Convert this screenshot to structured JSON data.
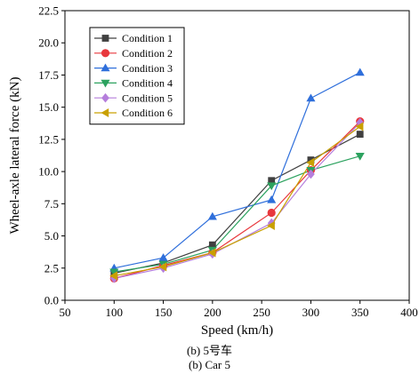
{
  "chart_data": {
    "type": "line",
    "title": "",
    "xlabel": "Speed (km/h)",
    "ylabel": "Wheel-axle lateral force (kN)",
    "xlim": [
      50,
      400
    ],
    "ylim": [
      0,
      22.5
    ],
    "xticks": [
      50,
      100,
      150,
      200,
      250,
      300,
      350,
      400
    ],
    "yticks": [
      0.0,
      2.5,
      5.0,
      7.5,
      10.0,
      12.5,
      15.0,
      17.5,
      20.0,
      22.5
    ],
    "xtick_labels": [
      "50",
      "100",
      "150",
      "200",
      "250",
      "300",
      "350",
      "400"
    ],
    "ytick_labels": [
      "0.0",
      "2.5",
      "5.0",
      "7.5",
      "10.0",
      "12.5",
      "15.0",
      "17.5",
      "20.0",
      "22.5"
    ],
    "grid": false,
    "legend_position": "top-left",
    "series": [
      {
        "name": "Condition 1",
        "color": "#404040",
        "marker": "square",
        "x": [
          100,
          150,
          200,
          260,
          300,
          350
        ],
        "y": [
          2.1,
          2.9,
          4.3,
          9.3,
          10.9,
          12.9
        ]
      },
      {
        "name": "Condition 2",
        "color": "#e8383d",
        "marker": "circle",
        "x": [
          100,
          150,
          200,
          260,
          300,
          350
        ],
        "y": [
          1.7,
          2.7,
          3.7,
          6.8,
          10.1,
          13.9
        ]
      },
      {
        "name": "Condition 3",
        "color": "#2f6fdb",
        "marker": "triangle-up",
        "x": [
          100,
          150,
          200,
          260,
          300,
          350
        ],
        "y": [
          2.5,
          3.3,
          6.5,
          7.8,
          15.7,
          17.7
        ]
      },
      {
        "name": "Condition 4",
        "color": "#2ca25f",
        "marker": "triangle-down",
        "x": [
          100,
          150,
          200,
          260,
          300,
          350
        ],
        "y": [
          2.2,
          2.8,
          3.9,
          8.9,
          10.1,
          11.2
        ]
      },
      {
        "name": "Condition 5",
        "color": "#b57edc",
        "marker": "diamond",
        "x": [
          100,
          150,
          200,
          260,
          300,
          350
        ],
        "y": [
          1.7,
          2.5,
          3.6,
          6.0,
          9.8,
          13.8
        ]
      },
      {
        "name": "Condition 6",
        "color": "#c9a000",
        "marker": "triangle-left",
        "x": [
          100,
          150,
          200,
          260,
          300,
          350
        ],
        "y": [
          1.9,
          2.6,
          3.7,
          5.8,
          10.7,
          13.5
        ]
      }
    ]
  },
  "captions": {
    "line1": "(b) 5号车",
    "line2": "(b) Car 5"
  }
}
